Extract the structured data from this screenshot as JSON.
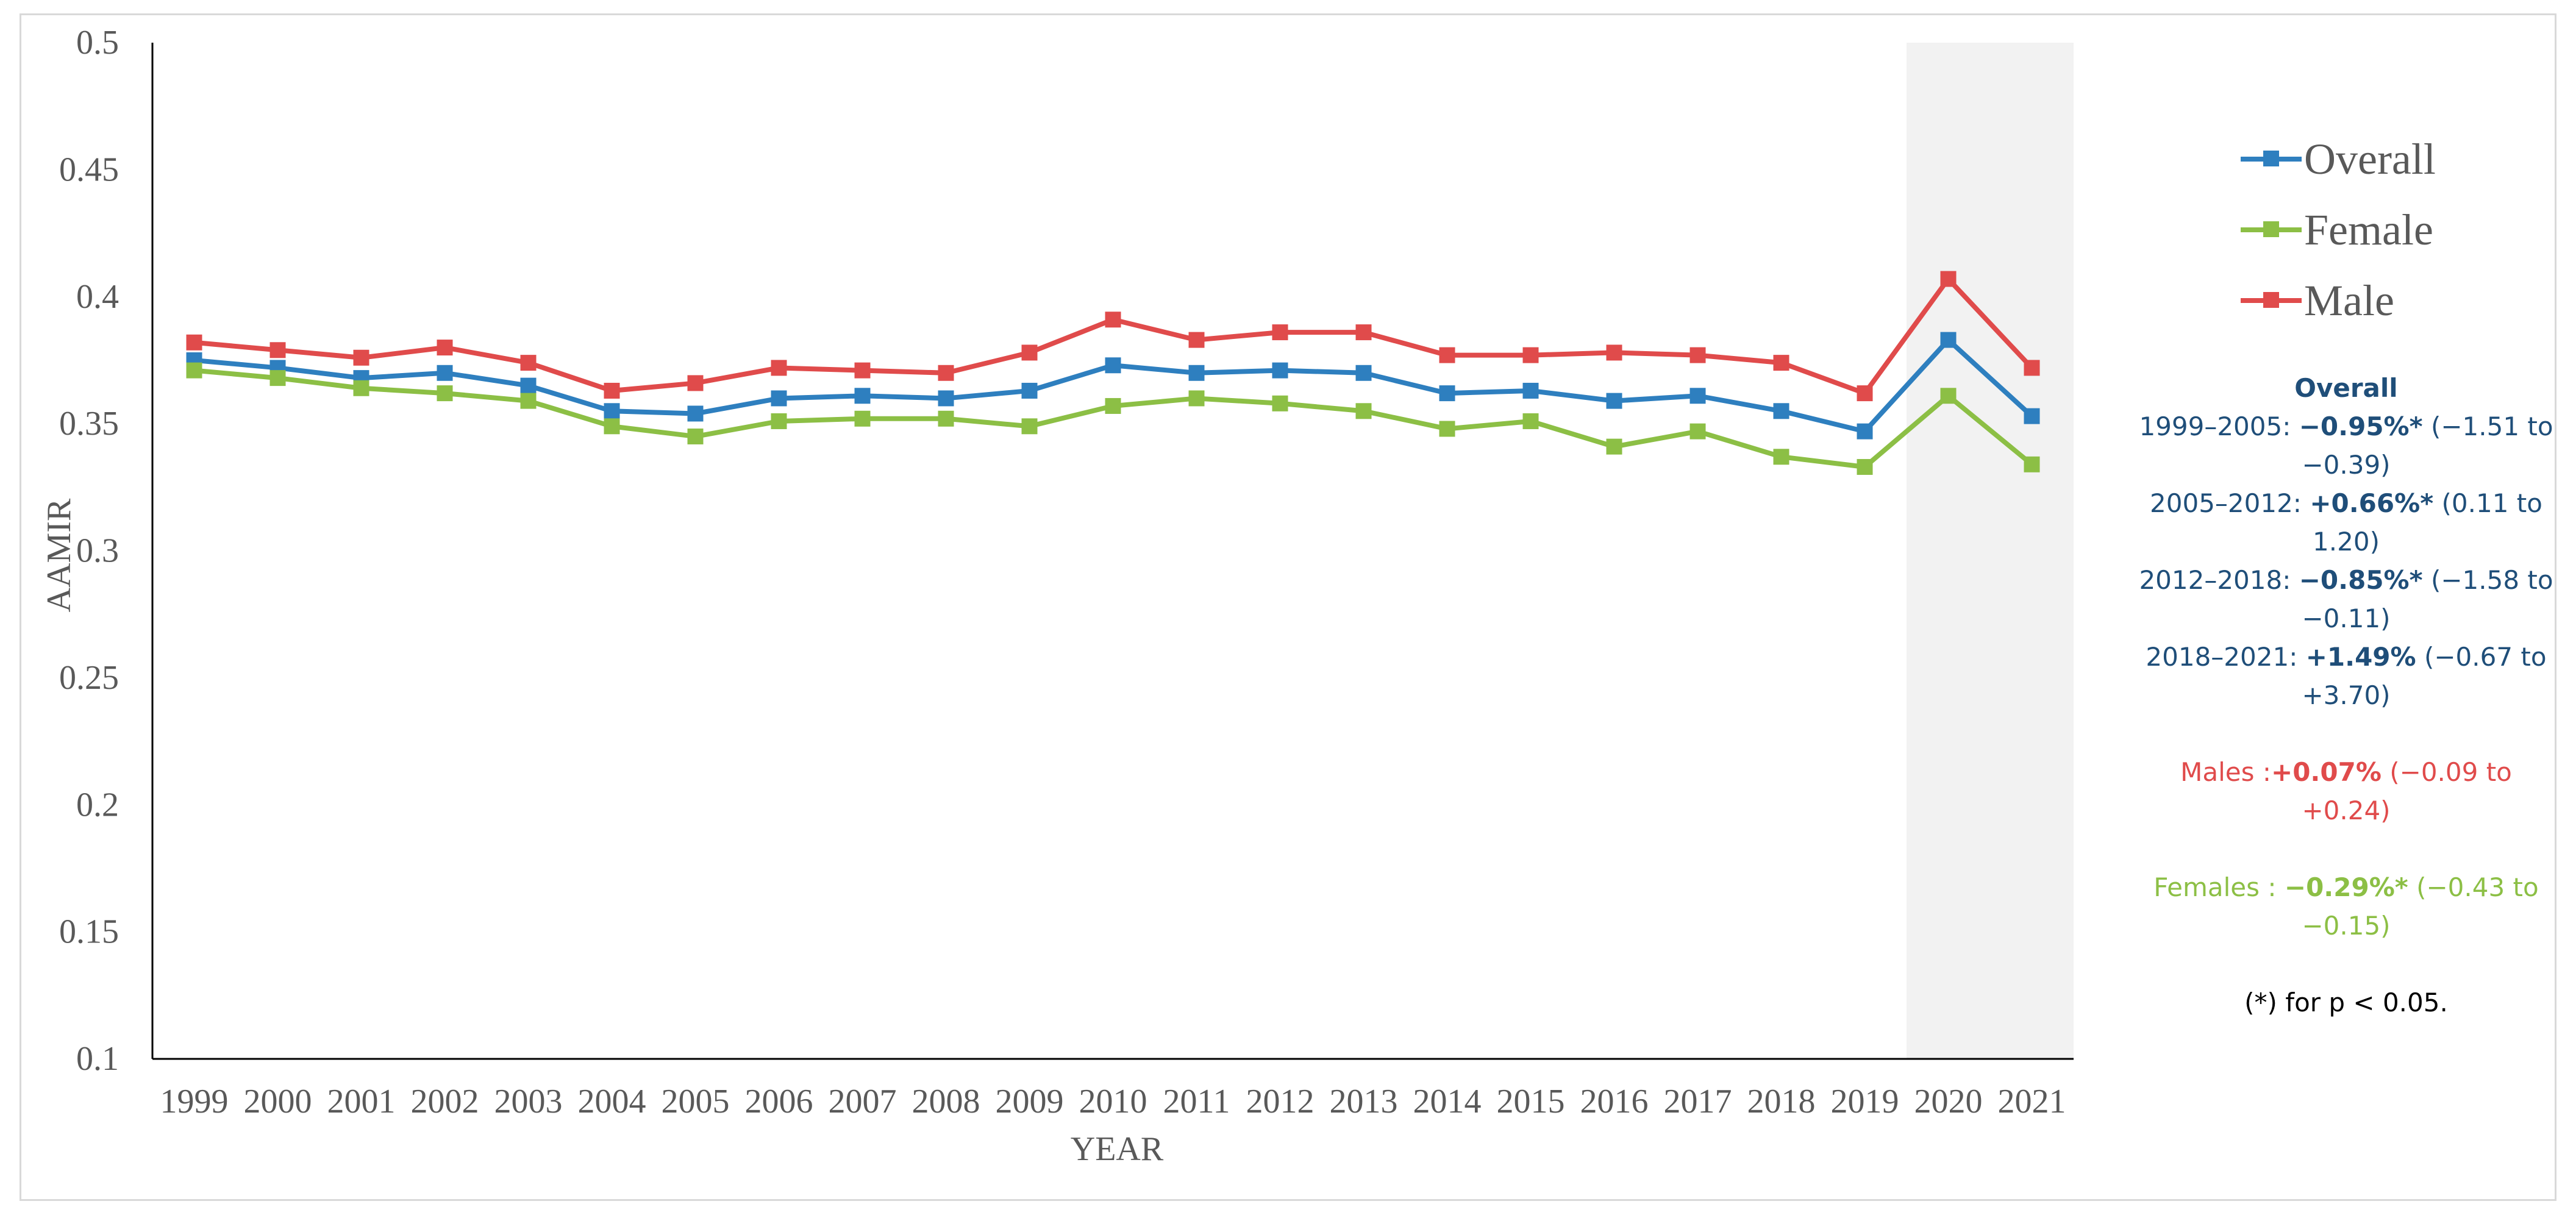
{
  "chart_data": {
    "type": "line",
    "title": "",
    "xlabel": "YEAR",
    "ylabel": "AAMIR",
    "ylim": [
      0.1,
      0.5
    ],
    "y_ticks": [
      "0.1",
      "0.15",
      "0.2",
      "0.25",
      "0.3",
      "0.35",
      "0.4",
      "0.45",
      "0.5"
    ],
    "categories": [
      "1999",
      "2000",
      "2001",
      "2002",
      "2003",
      "2004",
      "2005",
      "2006",
      "2007",
      "2008",
      "2009",
      "2010",
      "2011",
      "2012",
      "2013",
      "2014",
      "2015",
      "2016",
      "2017",
      "2018",
      "2019",
      "2020",
      "2021"
    ],
    "shaded_region": [
      "2020",
      "2021"
    ],
    "grid": false,
    "legend_placement": "right",
    "series": [
      {
        "name": "Overall",
        "color": "#2e7fbf",
        "values": [
          0.375,
          0.372,
          0.368,
          0.37,
          0.365,
          0.355,
          0.354,
          0.36,
          0.361,
          0.36,
          0.363,
          0.373,
          0.37,
          0.371,
          0.37,
          0.362,
          0.363,
          0.359,
          0.361,
          0.355,
          0.347,
          0.383,
          0.353
        ]
      },
      {
        "name": "Female",
        "color": "#8cbf45",
        "values": [
          0.371,
          0.368,
          0.364,
          0.362,
          0.359,
          0.349,
          0.345,
          0.351,
          0.352,
          0.352,
          0.349,
          0.357,
          0.36,
          0.358,
          0.355,
          0.348,
          0.351,
          0.341,
          0.347,
          0.337,
          0.333,
          0.361,
          0.334
        ]
      },
      {
        "name": "Male",
        "color": "#e04b4b",
        "values": [
          0.382,
          0.379,
          0.376,
          0.38,
          0.374,
          0.363,
          0.366,
          0.372,
          0.371,
          0.37,
          0.378,
          0.391,
          0.383,
          0.386,
          0.386,
          0.377,
          0.377,
          0.378,
          0.377,
          0.374,
          0.362,
          0.407,
          0.372
        ]
      }
    ]
  },
  "notes": {
    "overall_title": "Overall",
    "overall_rows": [
      {
        "prefix": "1999–2005: ",
        "value": "−0.95%*",
        "suffix": " (−1.51 to −0.39)"
      },
      {
        "prefix": "2005–2012: ",
        "value": "+0.66%*",
        "suffix": " (0.11 to 1.20)"
      },
      {
        "prefix": "2012–2018: ",
        "value": "−0.85%*",
        "suffix": " (−1.58 to −0.11)"
      },
      {
        "prefix": "2018–2021: ",
        "value": "+1.49%",
        "suffix": " (−0.67 to +3.70)"
      }
    ],
    "males": {
      "prefix": "Males :",
      "value": "+0.07%",
      "suffix": " (−0.09 to +0.24)"
    },
    "females": {
      "prefix": "Females : ",
      "value": "−0.29%*",
      "suffix": " (−0.43 to −0.15)"
    },
    "footnote": "(*) for p < 0.05."
  }
}
